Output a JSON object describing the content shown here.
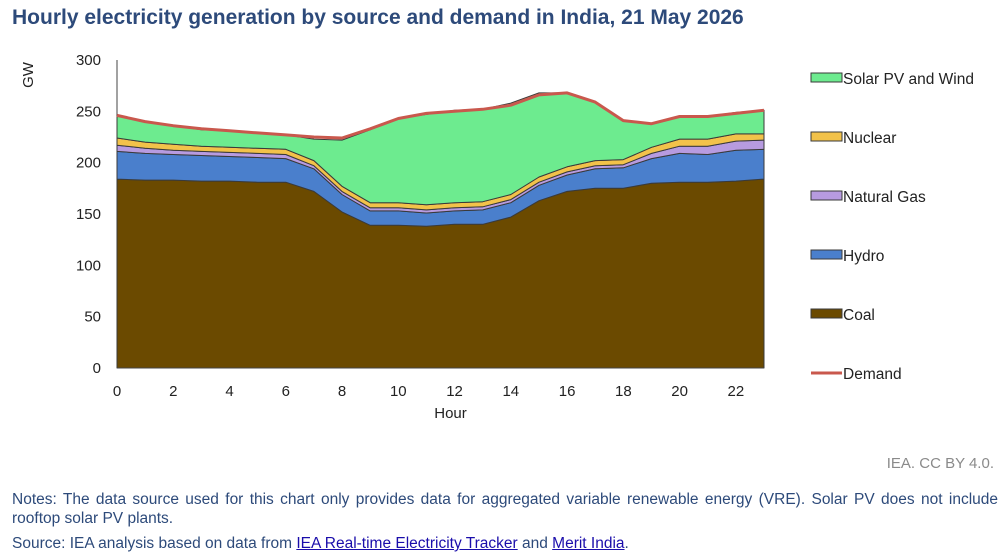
{
  "title": "Hourly electricity generation by source and demand in India, 21 May 2026",
  "credit": "IEA. CC BY 4.0.",
  "notes": "Notes: The data source used for this chart only provides data for aggregated variable renewable energy (VRE). Solar PV does not include rooftop solar PV plants.",
  "source": {
    "prefix": "Source: IEA analysis based on data from ",
    "link1": "IEA Real-time Electricity Tracker",
    "middle": " and ",
    "link2": "Merit India",
    "suffix": "."
  },
  "chart_data": {
    "type": "area",
    "stacked": true,
    "ylabel": "GW",
    "xlabel": "Hour",
    "ylim": [
      0,
      300
    ],
    "yticks": [
      0,
      50,
      100,
      150,
      200,
      250,
      300
    ],
    "xticks": [
      0,
      2,
      4,
      6,
      8,
      10,
      12,
      14,
      16,
      18,
      20,
      22
    ],
    "xlim": [
      0,
      23
    ],
    "legend_position": "right",
    "x": [
      0,
      1,
      2,
      3,
      4,
      5,
      6,
      7,
      8,
      9,
      10,
      11,
      12,
      13,
      14,
      15,
      16,
      17,
      18,
      19,
      20,
      21,
      22,
      23
    ],
    "series": [
      {
        "name": "Coal",
        "color": "#6b4a00",
        "values": [
          184,
          183,
          183,
          182,
          182,
          181,
          181,
          172,
          152,
          139,
          139,
          138,
          140,
          140,
          147,
          163,
          172,
          175,
          175,
          180,
          181,
          181,
          182,
          184
        ]
      },
      {
        "name": "Hydro",
        "color": "#4a7fcc",
        "values": [
          27,
          26,
          25,
          25,
          24,
          24,
          23,
          22,
          17,
          14,
          14,
          13,
          13,
          14,
          14,
          15,
          16,
          19,
          20,
          24,
          28,
          27,
          30,
          29
        ]
      },
      {
        "name": "Natural Gas",
        "color": "#b79be0",
        "values": [
          6,
          5,
          4,
          4,
          4,
          4,
          4,
          3,
          3,
          3,
          3,
          3,
          3,
          3,
          3,
          3,
          3,
          3,
          3,
          5,
          7,
          8,
          9,
          9
        ]
      },
      {
        "name": "Nuclear",
        "color": "#f2c24a",
        "values": [
          7,
          6,
          6,
          5,
          5,
          5,
          5,
          5,
          5,
          5,
          5,
          5,
          5,
          5,
          5,
          5,
          5,
          5,
          5,
          6,
          7,
          7,
          7,
          6
        ]
      },
      {
        "name": "Solar PV and Wind",
        "color": "#6deb8f",
        "values": [
          22,
          20,
          18,
          16,
          16,
          15,
          14,
          21,
          45,
          71,
          82,
          88,
          90,
          90,
          89,
          82,
          72,
          57,
          38,
          23,
          22,
          22,
          21,
          23
        ]
      }
    ],
    "demand": {
      "name": "Demand",
      "color": "#c9584d",
      "values": [
        246,
        240,
        236,
        233,
        231,
        229,
        227,
        225,
        224,
        233,
        243,
        248,
        250,
        252,
        256,
        266,
        268,
        259,
        241,
        238,
        245,
        245,
        248,
        251
      ]
    }
  }
}
